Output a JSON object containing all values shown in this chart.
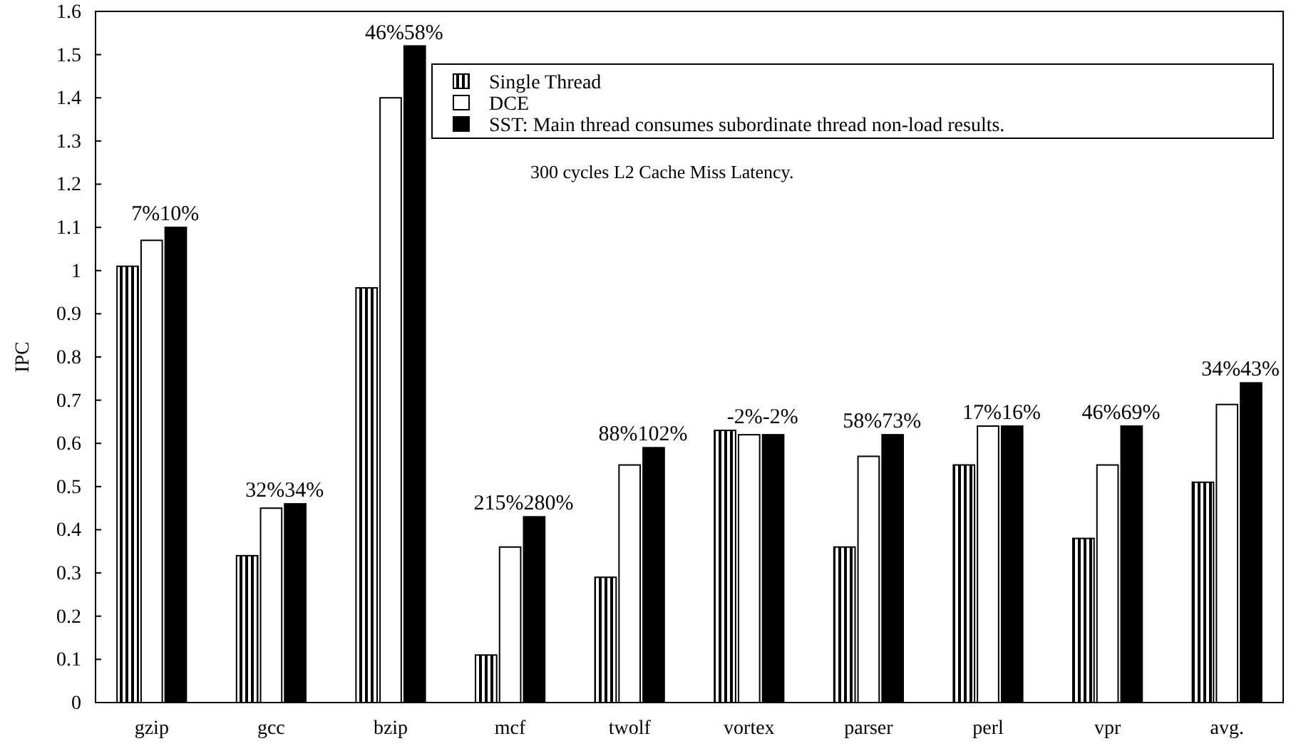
{
  "chart_data": {
    "type": "bar",
    "ylabel": "IPC",
    "categories": [
      "gzip",
      "gcc",
      "bzip",
      "mcf",
      "twolf",
      "vortex",
      "parser",
      "perl",
      "vpr",
      "avg."
    ],
    "series": [
      {
        "name": "Single Thread",
        "color": "#000000",
        "values": [
          1.01,
          0.34,
          0.96,
          0.11,
          0.29,
          0.63,
          0.36,
          0.55,
          0.38,
          0.51
        ]
      },
      {
        "name": "DCE",
        "color": "#ffffff",
        "values": [
          1.07,
          0.45,
          1.4,
          0.36,
          0.55,
          0.62,
          0.57,
          0.64,
          0.55,
          0.69
        ]
      },
      {
        "name": "SST: Main thread consumes subordinate thread non-load results.",
        "color": "#000000",
        "values": [
          1.1,
          0.46,
          1.52,
          0.43,
          0.59,
          0.62,
          0.62,
          0.64,
          0.64,
          0.74
        ]
      }
    ],
    "ylim": [
      0,
      1.6
    ],
    "yticks": [
      0,
      {
        "value": 0.1,
        "label": "0.1"
      },
      {
        "value": 0.2,
        "label": "0.2"
      },
      {
        "value": 0.3,
        "label": "0.3"
      },
      {
        "value": 0.4,
        "label": "0.4"
      },
      {
        "value": 0.5,
        "label": "0.5"
      },
      {
        "value": 0.6,
        "label": "0.6"
      },
      {
        "value": 0.7,
        "label": "0.7"
      },
      {
        "value": 0.8,
        "label": "0.8"
      },
      {
        "value": 0.9,
        "label": "0.9"
      },
      1,
      {
        "value": 1.1,
        "label": "1.1"
      },
      {
        "value": 1.2,
        "label": "1.2"
      },
      {
        "value": 1.3,
        "label": "1.3"
      },
      {
        "value": 1.4,
        "label": "1.4"
      },
      {
        "value": 1.5,
        "label": "1.5"
      },
      {
        "value": 1.6,
        "label": "1.6"
      }
    ],
    "grid": false,
    "legend": "top right",
    "annotations": [
      "300 cycles L2 Cache Miss Latency.",
      "7%10%",
      "32%34%",
      "46%58%",
      "215%280%",
      "88%102%",
      "-2%-2%",
      "58%73%",
      "17%16%",
      "46%69%",
      "34%43%"
    ]
  }
}
